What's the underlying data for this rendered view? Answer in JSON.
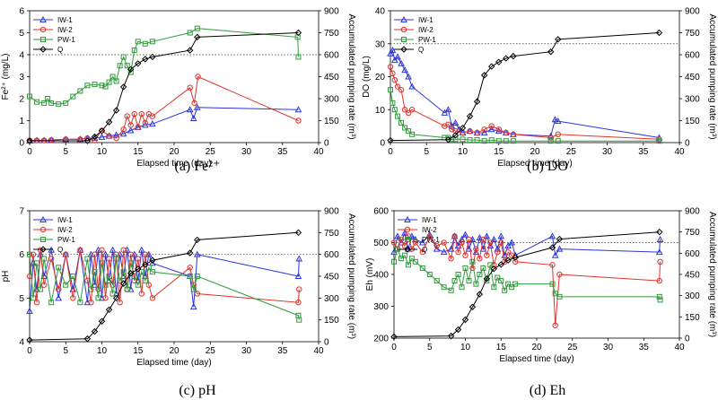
{
  "chart_data": [
    {
      "type": "line",
      "caption": "(a) Fe²⁺",
      "xlabel": "Elapsed time (day)",
      "ylabel": "Fe²⁺ (mg/L)",
      "y2label": "Accumulated pumping rate (m³)",
      "xlim": [
        0,
        40
      ],
      "xticks": [
        0,
        5,
        10,
        15,
        20,
        25,
        30,
        35,
        40
      ],
      "ylim": [
        0,
        6
      ],
      "yticks": [
        0,
        1,
        2,
        3,
        4,
        5,
        6
      ],
      "y2lim": [
        0,
        900
      ],
      "y2ticks": [
        0,
        150,
        300,
        450,
        600,
        750,
        900
      ],
      "refline": 4,
      "legend": [
        "IW-1",
        "IW-2",
        "PW-1",
        "Q"
      ],
      "series": [
        {
          "name": "IW-1",
          "color": "#2b35d9",
          "marker": "triangle",
          "axis": "left",
          "x": [
            0,
            1,
            2,
            3,
            5,
            7,
            8,
            9,
            10,
            11,
            12,
            13,
            14,
            15,
            16,
            17,
            22.2,
            22.7,
            23.2,
            37.2
          ],
          "y": [
            0.08,
            0.1,
            0.1,
            0.12,
            0.15,
            0.15,
            0.2,
            0.2,
            0.25,
            0.3,
            0.35,
            0.4,
            0.55,
            0.7,
            0.8,
            0.85,
            1.5,
            1.1,
            1.6,
            1.5
          ]
        },
        {
          "name": "IW-2",
          "color": "#e0312b",
          "marker": "circle",
          "axis": "left",
          "x": [
            0,
            1,
            2,
            3,
            5,
            7,
            8,
            9,
            10,
            11,
            12,
            13,
            13.5,
            14,
            14.5,
            15,
            15.5,
            16,
            16.5,
            17,
            22.2,
            22.8,
            23.3,
            37.2
          ],
          "y": [
            0.1,
            0.1,
            0.1,
            0.12,
            0.15,
            0.15,
            0.2,
            0.1,
            0.55,
            0.3,
            0.2,
            0.6,
            1.2,
            0.8,
            1.3,
            0.7,
            1.3,
            0.9,
            1.3,
            1.2,
            2.5,
            1.8,
            3.0,
            1.0
          ]
        },
        {
          "name": "PW-1",
          "color": "#2e9a3a",
          "marker": "square",
          "axis": "left",
          "x": [
            0,
            1,
            2,
            2.5,
            3,
            4,
            5,
            6,
            7,
            8,
            9,
            10,
            10.5,
            11,
            11.5,
            12,
            12.5,
            13,
            13.5,
            14,
            14.5,
            15,
            16,
            17,
            22.2,
            23.2,
            37.1,
            37.2
          ],
          "y": [
            2.1,
            1.85,
            1.8,
            2.0,
            1.8,
            1.75,
            1.8,
            2.1,
            2.35,
            2.6,
            2.65,
            2.6,
            2.55,
            2.75,
            3.0,
            2.8,
            3.5,
            3.9,
            3.5,
            3.2,
            4.2,
            4.6,
            4.5,
            4.6,
            5.0,
            5.2,
            4.8,
            3.9
          ]
        },
        {
          "name": "Q",
          "color": "#000000",
          "marker": "diamond",
          "axis": "right",
          "x": [
            0,
            8,
            9,
            10,
            11,
            12,
            13,
            14,
            15,
            16,
            17,
            22.2,
            23.2,
            37.2
          ],
          "y": [
            12,
            12,
            40,
            80,
            140,
            220,
            380,
            500,
            540,
            570,
            585,
            630,
            720,
            750
          ]
        }
      ]
    },
    {
      "type": "line",
      "caption": "(b) DO",
      "xlabel": "Elapsed time (day)",
      "ylabel": "DO (mg/L)",
      "y2label": "Accumulated pumping rate (m³)",
      "xlim": [
        0,
        40
      ],
      "xticks": [
        0,
        5,
        10,
        15,
        20,
        25,
        30,
        35,
        40
      ],
      "ylim": [
        0,
        40
      ],
      "yticks": [
        0,
        10,
        20,
        30,
        40
      ],
      "y2lim": [
        0,
        900
      ],
      "y2ticks": [
        0,
        150,
        300,
        450,
        600,
        750,
        900
      ],
      "refline": 30,
      "legend": [
        "IW-1",
        "IW-2",
        "PW-1",
        "Q"
      ],
      "series": [
        {
          "name": "IW-1",
          "color": "#2b35d9",
          "marker": "triangle",
          "axis": "left",
          "x": [
            0,
            0.3,
            0.6,
            1,
            1.5,
            2,
            2.5,
            3,
            7.5,
            8,
            8.5,
            9,
            9.5,
            10,
            11,
            12,
            13,
            14,
            15,
            16,
            17,
            22.2,
            22.8,
            23.2,
            37.2
          ],
          "y": [
            27,
            28,
            25,
            26,
            24,
            22,
            20,
            17,
            9,
            10,
            5,
            6,
            4,
            3,
            3.5,
            3,
            3,
            4,
            3.5,
            3,
            2.5,
            2,
            7,
            6.5,
            1.5
          ]
        },
        {
          "name": "IW-2",
          "color": "#e0312b",
          "marker": "circle",
          "axis": "left",
          "x": [
            0,
            0.3,
            0.6,
            1,
            1.5,
            2,
            2.5,
            3,
            7.5,
            8,
            8.5,
            9,
            10,
            11,
            12,
            13,
            14,
            15,
            16,
            17,
            22.2,
            23.2,
            37.2
          ],
          "y": [
            23,
            21,
            19,
            17,
            16,
            10,
            9,
            10,
            5,
            5.5,
            4,
            3.5,
            3,
            3.5,
            3,
            4,
            5,
            4,
            3,
            2.5,
            1.5,
            2.5,
            1
          ]
        },
        {
          "name": "PW-1",
          "color": "#2e9a3a",
          "marker": "square",
          "axis": "left",
          "x": [
            0,
            0.3,
            0.6,
            1,
            1.5,
            2,
            2.5,
            3,
            7.5,
            8,
            8.5,
            9,
            10,
            11,
            12,
            13,
            14,
            15,
            16,
            17,
            22.2,
            23.2,
            37.2
          ],
          "y": [
            16,
            12,
            10,
            8,
            6,
            4.5,
            3.5,
            2.5,
            1.5,
            1.5,
            1,
            1,
            1,
            0.8,
            0.8,
            0.5,
            0.8,
            0.5,
            0.5,
            0.5,
            0.5,
            0.5,
            0.5
          ]
        },
        {
          "name": "Q",
          "color": "#000000",
          "marker": "diamond",
          "axis": "right",
          "x": [
            0,
            8,
            9,
            10,
            11,
            12,
            13,
            14,
            15,
            16,
            17,
            22.2,
            23.2,
            37.2
          ],
          "y": [
            15,
            20,
            50,
            100,
            180,
            280,
            460,
            520,
            550,
            575,
            590,
            620,
            705,
            750
          ]
        }
      ]
    },
    {
      "type": "line",
      "caption": "(c) pH",
      "xlabel": "Elapsed time (day)",
      "ylabel": "pH",
      "y2label": "Accumulated pumping rate (m³)",
      "xlim": [
        0,
        40
      ],
      "xticks": [
        0,
        5,
        10,
        15,
        20,
        25,
        30,
        35,
        40
      ],
      "ylim": [
        4,
        7
      ],
      "yticks": [
        4,
        5,
        6,
        7
      ],
      "y2lim": [
        0,
        900
      ],
      "y2ticks": [
        0,
        150,
        300,
        450,
        600,
        750,
        900
      ],
      "refline": 6,
      "legend": [
        "IW-1",
        "IW-2",
        "PW-1",
        "Q"
      ],
      "series": [
        {
          "name": "IW-1",
          "color": "#2b35d9",
          "marker": "triangle",
          "axis": "left",
          "x": [
            0,
            0.5,
            1,
            1.5,
            2,
            3,
            4,
            5,
            6,
            7,
            8,
            8.5,
            9,
            9.5,
            10,
            10.5,
            11,
            11.5,
            12,
            12.5,
            13,
            13.5,
            14,
            14.5,
            15,
            15.5,
            16,
            16.5,
            17,
            22.2,
            22.7,
            23.2,
            37.2,
            37.3
          ],
          "y": [
            4.7,
            5.8,
            5.2,
            6.0,
            5.5,
            6.1,
            5.0,
            6.0,
            5.2,
            6.1,
            4.9,
            6.0,
            5.3,
            6.1,
            5.0,
            6.0,
            5.4,
            6.1,
            5.1,
            6.0,
            5.5,
            6.1,
            5.2,
            6.0,
            5.4,
            6.1,
            5.5,
            6.0,
            5.8,
            5.5,
            4.8,
            6.0,
            5.5,
            5.9
          ]
        },
        {
          "name": "IW-2",
          "color": "#e0312b",
          "marker": "circle",
          "axis": "left",
          "x": [
            0,
            0.5,
            1,
            1.5,
            2,
            3,
            4,
            5,
            6,
            7,
            8,
            8.5,
            9,
            9.5,
            10,
            10.5,
            11,
            11.5,
            12,
            12.5,
            13,
            13.5,
            14,
            14.5,
            15,
            15.5,
            16,
            16.5,
            17,
            22.2,
            22.7,
            23.2,
            37.2,
            37.3
          ],
          "y": [
            5.5,
            6.0,
            4.9,
            6.1,
            5.3,
            5.9,
            5.2,
            6.0,
            5.0,
            6.1,
            5.4,
            4.9,
            6.0,
            5.2,
            6.1,
            5.0,
            5.9,
            5.3,
            6.0,
            4.9,
            6.1,
            5.2,
            6.0,
            5.4,
            5.9,
            5.1,
            6.0,
            5.3,
            5.0,
            5.7,
            5.3,
            5.1,
            4.9,
            5.2
          ]
        },
        {
          "name": "PW-1",
          "color": "#2e9a3a",
          "marker": "square",
          "axis": "left",
          "x": [
            0,
            0.5,
            1,
            1.5,
            2,
            3,
            4,
            5,
            6,
            7,
            8,
            8.5,
            9,
            9.5,
            10,
            10.5,
            11,
            11.5,
            12,
            12.5,
            13,
            13.5,
            14,
            14.5,
            15,
            15.5,
            16,
            16.5,
            17,
            22.2,
            22.7,
            23.2,
            37.2,
            37.3
          ],
          "y": [
            6.0,
            5.0,
            5.8,
            5.2,
            5.9,
            4.9,
            5.7,
            5.3,
            5.5,
            4.9,
            5.9,
            5.2,
            5.6,
            5.0,
            5.8,
            5.3,
            5.5,
            5.1,
            5.9,
            5.4,
            5.6,
            5.2,
            5.8,
            5.5,
            5.3,
            5.6,
            5.4,
            5.7,
            5.6,
            5.5,
            5.2,
            5.5,
            4.6,
            4.5
          ]
        },
        {
          "name": "Q",
          "color": "#000000",
          "marker": "diamond",
          "axis": "right",
          "x": [
            0,
            8,
            9,
            10,
            11,
            12,
            13,
            14,
            15,
            16,
            17,
            22.2,
            23.2,
            37.2
          ],
          "y": [
            12,
            20,
            70,
            140,
            220,
            300,
            400,
            470,
            500,
            530,
            560,
            610,
            700,
            750
          ]
        }
      ]
    },
    {
      "type": "line",
      "caption": "(d) Eh",
      "xlabel": "Elapsed time (day)",
      "ylabel": "Eh (mV)",
      "y2label": "Accumulated pumping rate (m³)",
      "xlim": [
        0,
        40
      ],
      "xticks": [
        0,
        5,
        10,
        15,
        20,
        25,
        30,
        35,
        40
      ],
      "ylim": [
        200,
        600
      ],
      "yticks": [
        200,
        300,
        400,
        500,
        600
      ],
      "y2lim": [
        0,
        900
      ],
      "y2ticks": [
        0,
        150,
        300,
        450,
        600,
        750,
        900
      ],
      "refline": 500,
      "legend": [
        "IW-1",
        "IW-2",
        "PW-1",
        "Q"
      ],
      "series": [
        {
          "name": "IW-1",
          "color": "#2b35d9",
          "marker": "triangle",
          "axis": "left",
          "x": [
            0,
            0.5,
            1,
            1.5,
            2,
            2.5,
            3,
            4,
            5,
            6,
            7,
            8,
            8.5,
            9,
            9.5,
            10,
            10.5,
            11,
            11.5,
            12,
            12.5,
            13,
            13.5,
            14,
            14.5,
            15,
            15.5,
            16,
            16.5,
            17,
            22.2,
            22.6,
            23.2,
            37.2,
            37.3
          ],
          "y": [
            470,
            520,
            500,
            530,
            480,
            520,
            510,
            500,
            525,
            480,
            470,
            480,
            520,
            490,
            510,
            525,
            480,
            510,
            470,
            515,
            480,
            520,
            490,
            510,
            480,
            520,
            460,
            490,
            500,
            460,
            520,
            460,
            480,
            470,
            510
          ]
        },
        {
          "name": "IW-2",
          "color": "#e0312b",
          "marker": "circle",
          "axis": "left",
          "x": [
            0,
            0.5,
            1,
            1.5,
            2,
            2.5,
            3,
            4,
            5,
            6,
            7,
            8,
            8.5,
            9,
            9.5,
            10,
            10.5,
            11,
            11.5,
            12,
            12.5,
            13,
            13.5,
            14,
            14.5,
            15,
            15.5,
            16,
            16.5,
            17,
            22.2,
            22.6,
            23.2,
            37.2,
            37.3
          ],
          "y": [
            500,
            480,
            510,
            490,
            520,
            480,
            500,
            470,
            520,
            490,
            500,
            450,
            520,
            470,
            500,
            460,
            510,
            420,
            480,
            450,
            510,
            460,
            500,
            430,
            470,
            500,
            440,
            470,
            460,
            440,
            430,
            240,
            400,
            380,
            440
          ]
        },
        {
          "name": "PW-1",
          "color": "#2e9a3a",
          "marker": "square",
          "axis": "left",
          "x": [
            0,
            0.5,
            1,
            1.5,
            2,
            2.5,
            3,
            4,
            5,
            6,
            7,
            8,
            8.5,
            9,
            9.5,
            10,
            10.5,
            11,
            11.5,
            12,
            12.5,
            13,
            13.5,
            14,
            14.5,
            15,
            15.5,
            16,
            16.5,
            17,
            22.2,
            22.6,
            23.2,
            37.2,
            37.3
          ],
          "y": [
            440,
            480,
            450,
            460,
            430,
            450,
            440,
            420,
            400,
            380,
            360,
            350,
            380,
            400,
            360,
            420,
            380,
            440,
            370,
            400,
            420,
            380,
            430,
            360,
            390,
            380,
            350,
            370,
            360,
            370,
            370,
            340,
            330,
            330,
            320
          ]
        },
        {
          "name": "Q",
          "color": "#000000",
          "marker": "diamond",
          "axis": "right",
          "x": [
            0,
            8,
            9,
            10,
            11,
            12,
            13,
            14,
            15,
            16,
            17,
            22.2,
            23.2,
            37.2
          ],
          "y": [
            10,
            15,
            60,
            130,
            220,
            310,
            420,
            490,
            520,
            550,
            570,
            640,
            700,
            750
          ]
        }
      ]
    }
  ]
}
